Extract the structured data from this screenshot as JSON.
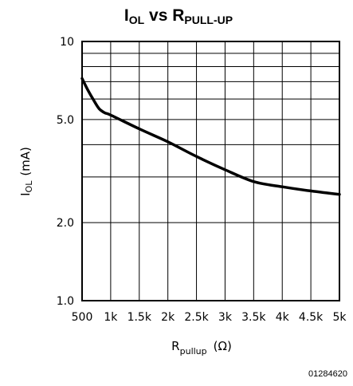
{
  "chart_data": {
    "type": "line",
    "title": {
      "main_a": "I",
      "sub_a": "OL",
      "mid": " vs R",
      "sub_b": "PULL-UP"
    },
    "xlabel": {
      "main": "R",
      "sub": "pullup",
      "unit": "(Ω)"
    },
    "ylabel": {
      "main": "I",
      "sub": "OL",
      "unit": "(mA)"
    },
    "x_scale": "linear",
    "y_scale": "log",
    "xlim": [
      500,
      5000
    ],
    "ylim": [
      1.0,
      10
    ],
    "x_ticks": [
      500,
      1000,
      1500,
      2000,
      2500,
      3000,
      3500,
      4000,
      4500,
      5000
    ],
    "x_tick_labels": [
      "500",
      "1k",
      "1.5k",
      "2k",
      "2.5k",
      "3k",
      "3.5k",
      "4k",
      "4.5k",
      "5k"
    ],
    "y_tick_values": [
      1.0,
      2.0,
      5.0,
      10
    ],
    "y_tick_labels": [
      "1.0",
      "2.0",
      "5.0",
      "10"
    ],
    "y_grid": [
      1,
      2,
      3,
      4,
      5,
      6,
      7,
      8,
      9,
      10
    ],
    "grid": true,
    "series": [
      {
        "x": [
          500,
          600,
          700,
          800,
          900,
          1000,
          1500,
          2000,
          2500,
          3000,
          3500,
          4000,
          4500,
          5000
        ],
        "y": [
          7.2,
          6.5,
          5.95,
          5.5,
          5.3,
          5.2,
          4.6,
          4.1,
          3.6,
          3.2,
          2.88,
          2.75,
          2.65,
          2.57
        ]
      }
    ],
    "figure_code": "01284620"
  }
}
